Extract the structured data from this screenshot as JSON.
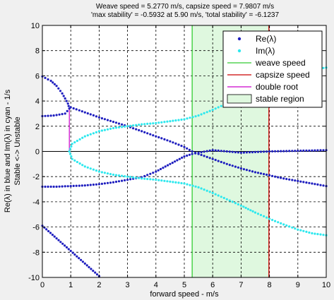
{
  "chart_data": {
    "type": "scatter",
    "title_line1": "Weave speed = 5.2770 m/s, capsize speed = 7.9807 m/s",
    "title_line2": "'max stability' = -0.5932 at 5.90 m/s, 'total stability' = -6.1237",
    "xlabel": "forward speed - m/s",
    "ylabel": "Re(λ) in blue and Im(λ) in cyan - 1/s",
    "ylabel2": "Stable <-> Unstable",
    "xlim": [
      0,
      10
    ],
    "ylim": [
      -10,
      10
    ],
    "xticks": [
      "0",
      "1",
      "2",
      "3",
      "4",
      "5",
      "6",
      "7",
      "8",
      "9",
      "10"
    ],
    "yticks": [
      "-10",
      "-8",
      "-6",
      "-4",
      "-2",
      "0",
      "2",
      "4",
      "6",
      "8",
      "10"
    ],
    "grid": true,
    "legend_position": "top-right",
    "weave_speed": 5.277,
    "capsize_speed": 7.9807,
    "double_root_speed": 0.95,
    "double_root_range": [
      0,
      3.4
    ],
    "colors": {
      "re": "#1f1fbf",
      "im": "#2ee8ee",
      "weave": "#33cc33",
      "capsize": "#cc0000",
      "double_root": "#cc00cc",
      "stable_fill": "#dff8df"
    },
    "legend": [
      {
        "label": "Re(λ)",
        "kind": "re"
      },
      {
        "label": "Im(λ)",
        "kind": "im"
      },
      {
        "label": "weave speed",
        "kind": "weave"
      },
      {
        "label": "capsize speed",
        "kind": "capsize"
      },
      {
        "label": "double root",
        "kind": "double_root"
      },
      {
        "label": "stable region",
        "kind": "stable"
      }
    ],
    "series": [
      {
        "name": "Re(λ)",
        "kind": "re",
        "segment": "weave-upper",
        "points": [
          [
            0,
            2.8
          ],
          [
            0.4,
            2.85
          ],
          [
            0.8,
            3.0
          ],
          [
            0.95,
            3.4
          ],
          [
            1,
            3.5
          ],
          [
            1.5,
            3.1
          ],
          [
            2,
            2.7
          ],
          [
            2.5,
            2.35
          ],
          [
            3,
            2.0
          ],
          [
            3.5,
            1.6
          ],
          [
            4,
            1.2
          ],
          [
            4.5,
            0.8
          ],
          [
            5,
            0.35
          ],
          [
            5.277,
            0
          ],
          [
            5.5,
            -0.2
          ],
          [
            6,
            -0.6
          ],
          [
            6.5,
            -1.0
          ],
          [
            7,
            -1.35
          ],
          [
            7.5,
            -1.65
          ],
          [
            8,
            -1.9
          ],
          [
            8.5,
            -2.15
          ],
          [
            9,
            -2.35
          ],
          [
            9.5,
            -2.55
          ],
          [
            10,
            -2.75
          ]
        ]
      },
      {
        "name": "Re(λ)",
        "kind": "re",
        "segment": "capsize",
        "points": [
          [
            0,
            5.95
          ],
          [
            0.3,
            5.6
          ],
          [
            0.5,
            5.2
          ],
          [
            0.7,
            4.6
          ],
          [
            0.9,
            3.8
          ],
          [
            0.95,
            3.4
          ]
        ]
      },
      {
        "name": "Re(λ)",
        "kind": "re",
        "segment": "weave-lower",
        "points": [
          [
            0,
            -2.8
          ],
          [
            0.5,
            -2.8
          ],
          [
            1,
            -2.75
          ],
          [
            1.5,
            -2.7
          ],
          [
            2,
            -2.6
          ],
          [
            2.5,
            -2.45
          ],
          [
            3,
            -2.25
          ],
          [
            3.5,
            -2.05
          ],
          [
            4,
            -1.6
          ],
          [
            4.5,
            -1.0
          ],
          [
            5,
            -0.4
          ],
          [
            5.277,
            -0.2
          ],
          [
            5.5,
            -0.1
          ],
          [
            6,
            0.1
          ],
          [
            6.5,
            0.0
          ],
          [
            7,
            -0.1
          ],
          [
            8,
            0.0
          ],
          [
            9,
            0.05
          ],
          [
            10,
            0.1
          ]
        ]
      },
      {
        "name": "Re(λ)",
        "kind": "re",
        "segment": "caster",
        "points": [
          [
            0,
            -5.9
          ],
          [
            0.5,
            -6.9
          ],
          [
            1,
            -7.9
          ],
          [
            1.5,
            -8.9
          ],
          [
            2,
            -9.9
          ]
        ]
      },
      {
        "name": "Im(λ)",
        "kind": "im",
        "segment": "positive",
        "points": [
          [
            0.95,
            0
          ],
          [
            1.05,
            0.6
          ],
          [
            1.5,
            1.2
          ],
          [
            2,
            1.6
          ],
          [
            2.5,
            1.85
          ],
          [
            3,
            2.0
          ],
          [
            3.5,
            2.15
          ],
          [
            4,
            2.25
          ],
          [
            4.5,
            2.4
          ],
          [
            5,
            2.55
          ],
          [
            5.5,
            2.85
          ],
          [
            6,
            3.3
          ],
          [
            6.5,
            3.8
          ],
          [
            7,
            4.3
          ],
          [
            7.5,
            4.85
          ],
          [
            8,
            5.35
          ],
          [
            8.5,
            5.8
          ],
          [
            9,
            6.2
          ],
          [
            9.5,
            6.5
          ],
          [
            10,
            6.65
          ]
        ]
      },
      {
        "name": "Im(λ)",
        "kind": "im",
        "segment": "negative",
        "points": [
          [
            0.95,
            0
          ],
          [
            1.05,
            -0.6
          ],
          [
            1.5,
            -1.2
          ],
          [
            2,
            -1.6
          ],
          [
            2.5,
            -1.85
          ],
          [
            3,
            -2.0
          ],
          [
            3.5,
            -2.15
          ],
          [
            4,
            -2.25
          ],
          [
            4.5,
            -2.4
          ],
          [
            5,
            -2.55
          ],
          [
            5.5,
            -2.85
          ],
          [
            6,
            -3.3
          ],
          [
            6.5,
            -3.8
          ],
          [
            7,
            -4.3
          ],
          [
            7.5,
            -4.85
          ],
          [
            8,
            -5.35
          ],
          [
            8.5,
            -5.8
          ],
          [
            9,
            -6.2
          ],
          [
            9.5,
            -6.5
          ],
          [
            10,
            -6.65
          ]
        ]
      }
    ]
  }
}
